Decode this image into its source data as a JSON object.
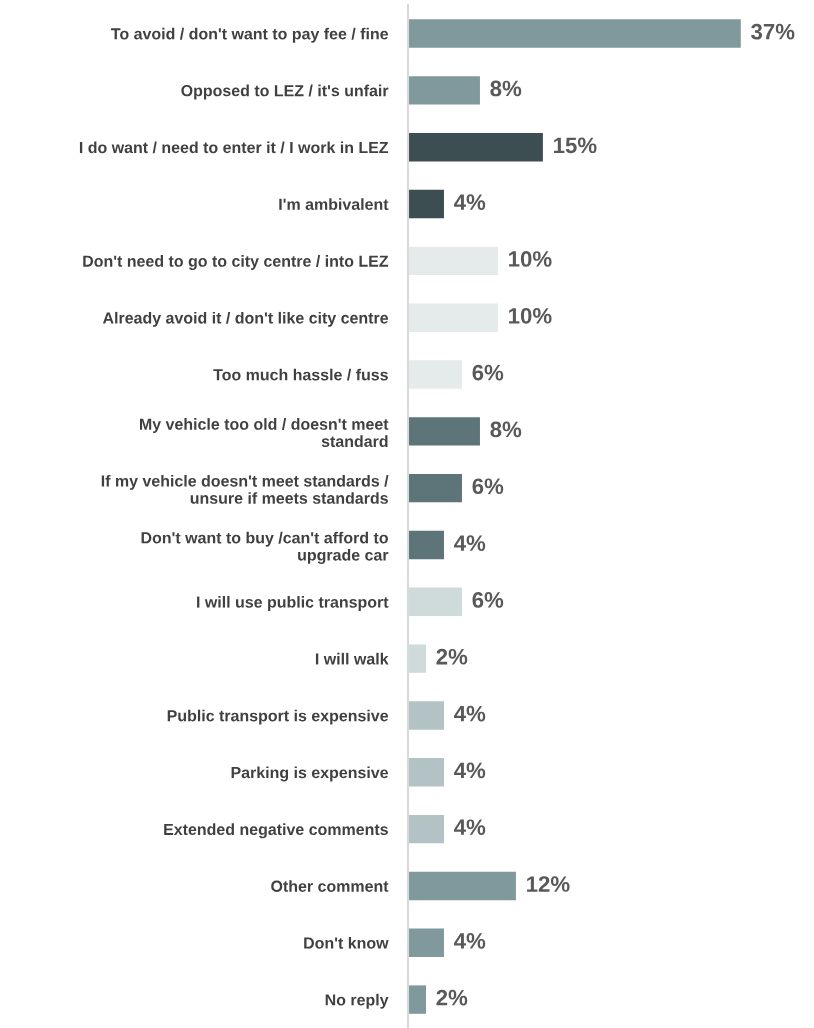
{
  "chart_data": {
    "type": "bar",
    "orientation": "horizontal",
    "categories": [
      "To avoid / don't want to pay fee / fine",
      "Opposed to LEZ / it's unfair",
      "I do want / need to enter it / I work in LEZ",
      "I'm ambivalent",
      "Don't need to go to city centre / into LEZ",
      "Already avoid it / don't like city centre",
      "Too much hassle / fuss",
      "My vehicle too old / doesn't meet\nstandard",
      "If my vehicle doesn't meet standards /\nunsure if meets standards",
      "Don't want to buy /can't afford to\nupgrade car",
      "I will use public transport",
      "I will walk",
      "Public transport is expensive",
      "Parking is expensive",
      "Extended negative comments",
      "Other comment",
      "Don't know",
      "No reply"
    ],
    "values": [
      37,
      8,
      15,
      4,
      10,
      10,
      6,
      8,
      6,
      4,
      6,
      2,
      4,
      4,
      4,
      12,
      4,
      2
    ],
    "colors": [
      "#80999d",
      "#80999d",
      "#3d4e53",
      "#3d4e53",
      "#e5eaeb",
      "#e5eaeb",
      "#e5eaeb",
      "#5d7478",
      "#5d7478",
      "#5d7478",
      "#cfdadb",
      "#cfdadb",
      "#b3c3c5",
      "#b3c3c5",
      "#b3c3c5",
      "#80999d",
      "#80999d",
      "#80999d"
    ],
    "value_labels": [
      "37%",
      "8%",
      "15%",
      "4%",
      "10%",
      "10%",
      "6%",
      "8%",
      "6%",
      "4%",
      "6%",
      "2%",
      "4%",
      "4%",
      "4%",
      "12%",
      "4%",
      "2%"
    ],
    "grid": false,
    "legend": false
  }
}
